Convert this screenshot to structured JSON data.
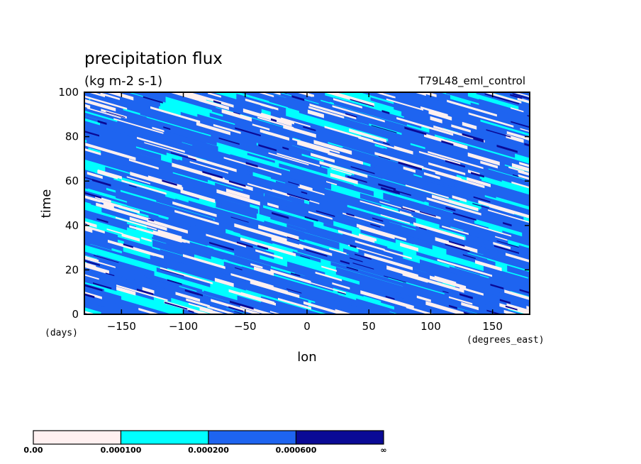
{
  "chart_data": {
    "type": "heatmap",
    "title": "precipitation flux",
    "units": "(kg m-2 s-1)",
    "run_label": "T79L48_eml_control",
    "xlabel": "lon",
    "xunits": "(degrees_east)",
    "ylabel": "time",
    "yunits": "(days)",
    "xlim": [
      -180,
      180
    ],
    "ylim": [
      0,
      100
    ],
    "xticks": [
      -150,
      -100,
      -50,
      0,
      50,
      100,
      150
    ],
    "yticks": [
      0,
      20,
      40,
      60,
      80,
      100
    ],
    "xtick_labels": [
      "−150",
      "−100",
      "−50",
      "0",
      "50",
      "100",
      "150"
    ],
    "ytick_labels": [
      "0",
      "20",
      "40",
      "60",
      "80",
      "100"
    ],
    "pattern": "eastward-to-westward tilted streaks (westward propagating precipitation bands)",
    "levels": [
      0.0,
      0.0001,
      0.0002,
      0.0006
    ],
    "level_labels": [
      "0.00",
      "0.000100",
      "0.000200",
      "0.000600",
      "∞"
    ],
    "colors": [
      "#fff0f0",
      "#00ffff",
      "#1e64f0",
      "#0a0a96"
    ],
    "colorbar_orientation": "horizontal-bottom"
  }
}
